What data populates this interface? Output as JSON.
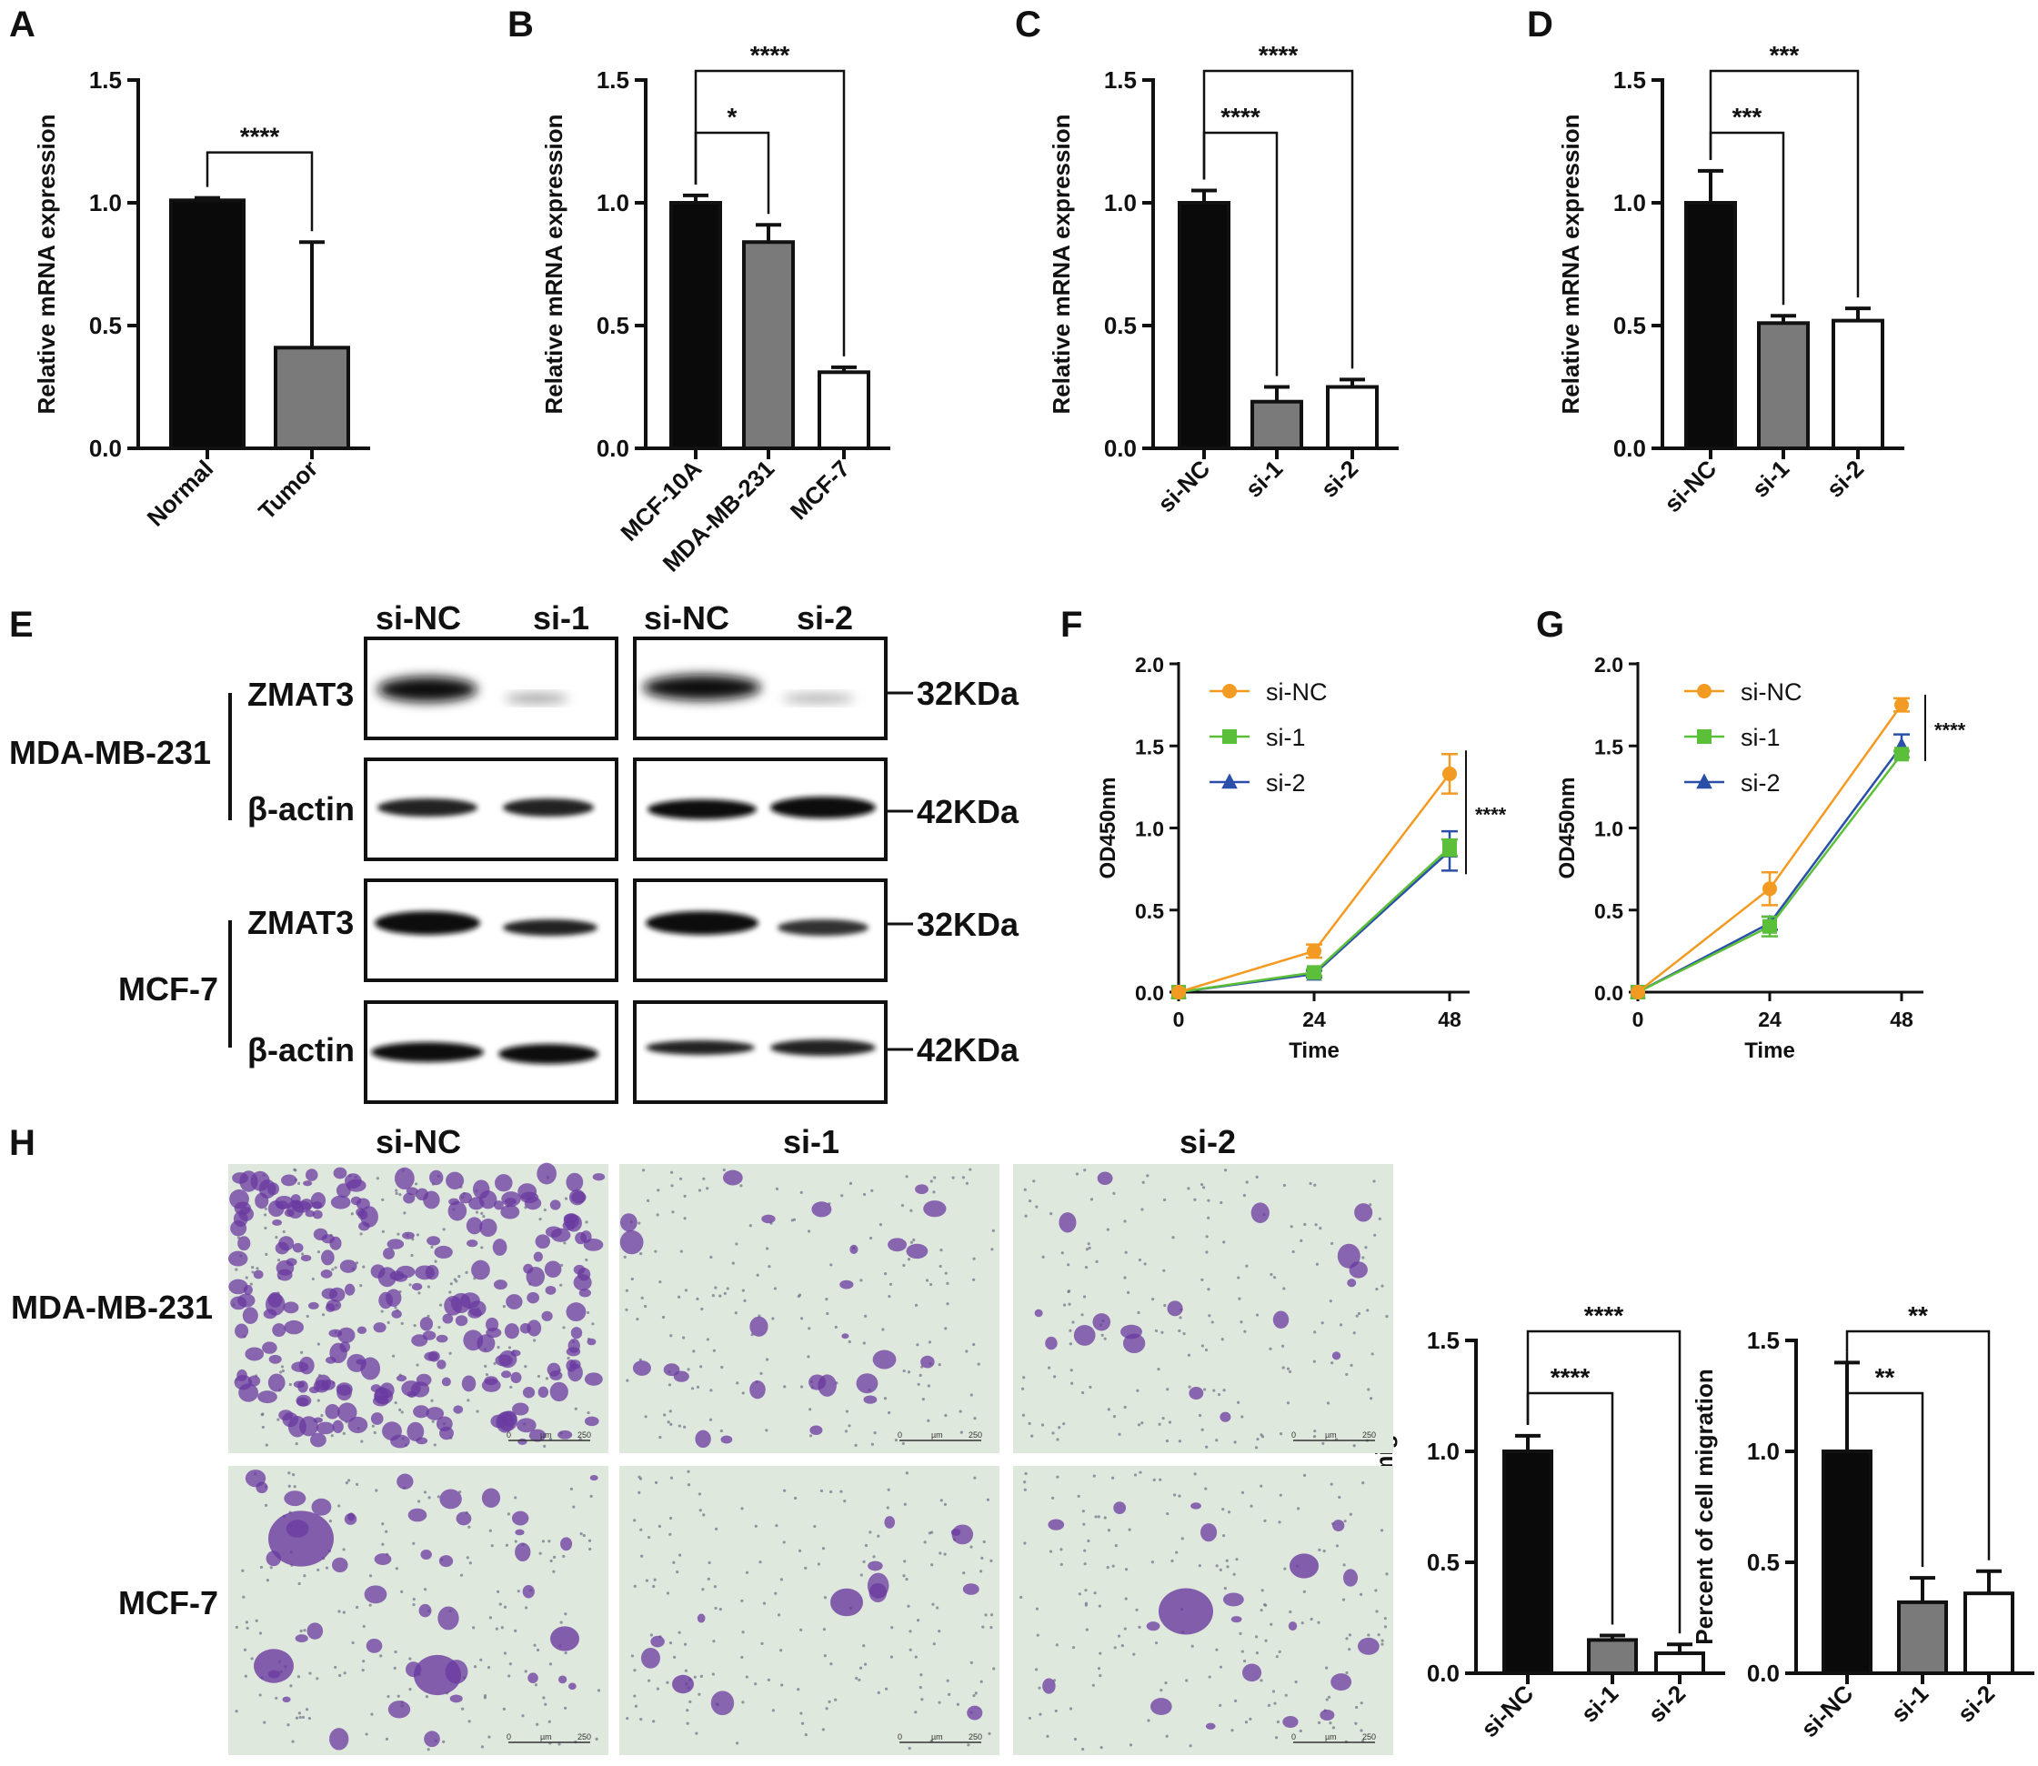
{
  "colors": {
    "black": "#0a0a0a",
    "gray": "#7a7a7a",
    "white": "#ffffff",
    "orange": "#f39a22",
    "green": "#5cbf3a",
    "blue": "#2a4fa8",
    "stain": "#6a3aa0",
    "membrane": "#dfe8dc"
  },
  "chart_data": [
    {
      "id": "A",
      "type": "bar",
      "ylabel": "Relative mRNA expression",
      "ylim": [
        0,
        1.5
      ],
      "yticks": [
        "0.0",
        "0.5",
        "1.0",
        "1.5"
      ],
      "categories": [
        "Normal",
        "Tumor"
      ],
      "values": [
        1.01,
        0.41
      ],
      "errors": [
        0.01,
        0.43
      ],
      "fills": [
        "black",
        "gray"
      ],
      "comparisons": [
        {
          "from": 0,
          "to": 1,
          "label": "****"
        }
      ]
    },
    {
      "id": "B",
      "type": "bar",
      "ylabel": "Relative mRNA expression",
      "ylim": [
        0,
        1.5
      ],
      "yticks": [
        "0.0",
        "0.5",
        "1.0",
        "1.5"
      ],
      "categories": [
        "MCF-10A",
        "MDA-MB-231",
        "MCF-7"
      ],
      "values": [
        1.0,
        0.84,
        0.31
      ],
      "errors": [
        0.03,
        0.07,
        0.02
      ],
      "fills": [
        "black",
        "gray",
        "white"
      ],
      "comparisons": [
        {
          "from": 0,
          "to": 1,
          "label": "*"
        },
        {
          "from": 0,
          "to": 2,
          "label": "****"
        }
      ]
    },
    {
      "id": "C",
      "type": "bar",
      "ylabel": "Relative mRNA expression",
      "ylim": [
        0,
        1.5
      ],
      "yticks": [
        "0.0",
        "0.5",
        "1.0",
        "1.5"
      ],
      "categories": [
        "si-NC",
        "si-1",
        "si-2"
      ],
      "values": [
        1.0,
        0.19,
        0.25
      ],
      "errors": [
        0.05,
        0.06,
        0.03
      ],
      "fills": [
        "black",
        "gray",
        "white"
      ],
      "comparisons": [
        {
          "from": 0,
          "to": 1,
          "label": "****"
        },
        {
          "from": 0,
          "to": 2,
          "label": "****"
        }
      ]
    },
    {
      "id": "D",
      "type": "bar",
      "ylabel": "Relative mRNA expression",
      "ylim": [
        0,
        1.5
      ],
      "yticks": [
        "0.0",
        "0.5",
        "1.0",
        "1.5"
      ],
      "categories": [
        "si-NC",
        "si-1",
        "si-2"
      ],
      "values": [
        1.0,
        0.51,
        0.52
      ],
      "errors": [
        0.13,
        0.03,
        0.05
      ],
      "fills": [
        "black",
        "gray",
        "white"
      ],
      "comparisons": [
        {
          "from": 0,
          "to": 1,
          "label": "***"
        },
        {
          "from": 0,
          "to": 2,
          "label": "***"
        }
      ]
    },
    {
      "id": "F",
      "type": "line",
      "xlabel": "Time",
      "ylabel": "OD450nm",
      "ylim": [
        0,
        2.0
      ],
      "yticks": [
        "0.0",
        "0.5",
        "1.0",
        "1.5",
        "2.0"
      ],
      "x": [
        0,
        24,
        48
      ],
      "xticks": [
        "0",
        "24",
        "48"
      ],
      "series": [
        {
          "name": "si-NC",
          "values": [
            0.0,
            0.25,
            1.33
          ],
          "errors": [
            0,
            0.04,
            0.12
          ],
          "marker": "circle",
          "color": "orange"
        },
        {
          "name": "si-1",
          "values": [
            0.0,
            0.12,
            0.88
          ],
          "errors": [
            0,
            0.02,
            0.05
          ],
          "marker": "square",
          "color": "green"
        },
        {
          "name": "si-2",
          "values": [
            0.0,
            0.11,
            0.86
          ],
          "errors": [
            0,
            0.02,
            0.12
          ],
          "marker": "triangle",
          "color": "blue"
        }
      ],
      "significance": "****"
    },
    {
      "id": "G",
      "type": "line",
      "xlabel": "Time",
      "ylabel": "OD450nm",
      "ylim": [
        0,
        2.0
      ],
      "yticks": [
        "0.0",
        "0.5",
        "1.0",
        "1.5",
        "2.0"
      ],
      "x": [
        0,
        24,
        48
      ],
      "xticks": [
        "0",
        "24",
        "48"
      ],
      "series": [
        {
          "name": "si-NC",
          "values": [
            0.0,
            0.63,
            1.75
          ],
          "errors": [
            0,
            0.1,
            0.04
          ],
          "marker": "circle",
          "color": "orange"
        },
        {
          "name": "si-1",
          "values": [
            0.0,
            0.4,
            1.45
          ],
          "errors": [
            0,
            0.06,
            0.02
          ],
          "marker": "square",
          "color": "green"
        },
        {
          "name": "si-2",
          "values": [
            0.0,
            0.42,
            1.5
          ],
          "errors": [
            0,
            0.04,
            0.07
          ],
          "marker": "triangle",
          "color": "blue"
        }
      ],
      "significance": "****"
    },
    {
      "id": "H1",
      "type": "bar",
      "ylabel": "Percent of cell migration",
      "ylim": [
        0,
        1.5
      ],
      "yticks": [
        "0.0",
        "0.5",
        "1.0",
        "1.5"
      ],
      "categories": [
        "si-NC",
        "si-1",
        "si-2"
      ],
      "values": [
        1.0,
        0.15,
        0.09
      ],
      "errors": [
        0.07,
        0.02,
        0.04
      ],
      "fills": [
        "black",
        "gray",
        "white"
      ],
      "comparisons": [
        {
          "from": 0,
          "to": 1,
          "label": "****"
        },
        {
          "from": 0,
          "to": 2,
          "label": "****"
        }
      ]
    },
    {
      "id": "H2",
      "type": "bar",
      "ylabel": "Percent of cell migration",
      "ylim": [
        0,
        1.5
      ],
      "yticks": [
        "0.0",
        "0.5",
        "1.0",
        "1.5"
      ],
      "categories": [
        "si-NC",
        "si-1",
        "si-2"
      ],
      "values": [
        1.0,
        0.32,
        0.36
      ],
      "errors": [
        0.4,
        0.11,
        0.1
      ],
      "fills": [
        "black",
        "gray",
        "white"
      ],
      "comparisons": [
        {
          "from": 0,
          "to": 1,
          "label": "**"
        },
        {
          "from": 0,
          "to": 2,
          "label": "**"
        }
      ]
    }
  ],
  "panel_letters": {
    "A": "A",
    "B": "B",
    "C": "C",
    "D": "D",
    "E": "E",
    "F": "F",
    "G": "G",
    "H": "H"
  },
  "western_blot": {
    "lanes": [
      "si-NC",
      "si-1",
      "si-NC",
      "si-2"
    ],
    "cell_lines": [
      "MDA-MB-231",
      "MCF-7"
    ],
    "proteins": [
      "ZMAT3",
      "β-actin"
    ],
    "sizes": [
      "32KDa",
      "42KDa"
    ]
  },
  "transwell": {
    "columns": [
      "si-NC",
      "si-1",
      "si-2"
    ],
    "rows": [
      "MDA-MB-231",
      "MCF-7"
    ],
    "scale_text": {
      "zero": "0",
      "unit": "µm",
      "max": "250"
    }
  }
}
